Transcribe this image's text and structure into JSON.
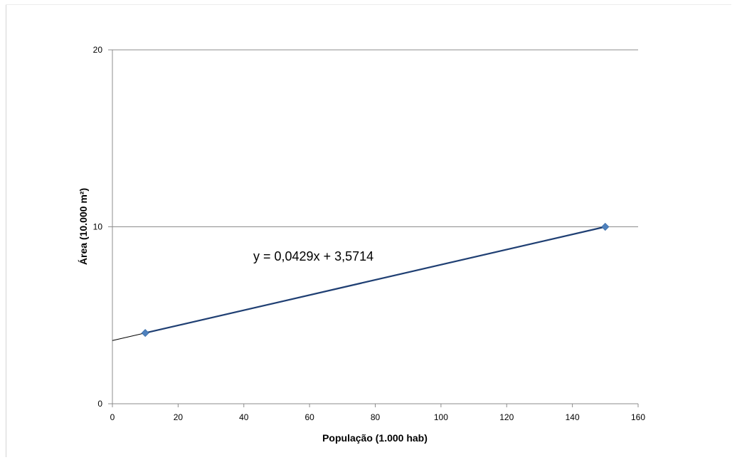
{
  "chart_data": {
    "type": "scatter",
    "title": "",
    "xlabel": "População (1.000 hab)",
    "ylabel": "Área (10.000 m²)",
    "xlim": [
      0,
      160
    ],
    "ylim": [
      0,
      20
    ],
    "x_ticks": [
      "0",
      "20",
      "40",
      "60",
      "80",
      "100",
      "120",
      "140",
      "160"
    ],
    "y_ticks": [
      "0",
      "10",
      "20"
    ],
    "grid": "horizontal",
    "legend": "none",
    "series": [
      {
        "points": [
          {
            "x": 10,
            "y": 4
          },
          {
            "x": 150,
            "y": 10
          }
        ],
        "color": "#4f81bd"
      }
    ],
    "trendline": {
      "slope": 0.0429,
      "intercept": 3.5714,
      "equation": "y = 0,0429x + 3,5714",
      "color": "#000000"
    }
  }
}
